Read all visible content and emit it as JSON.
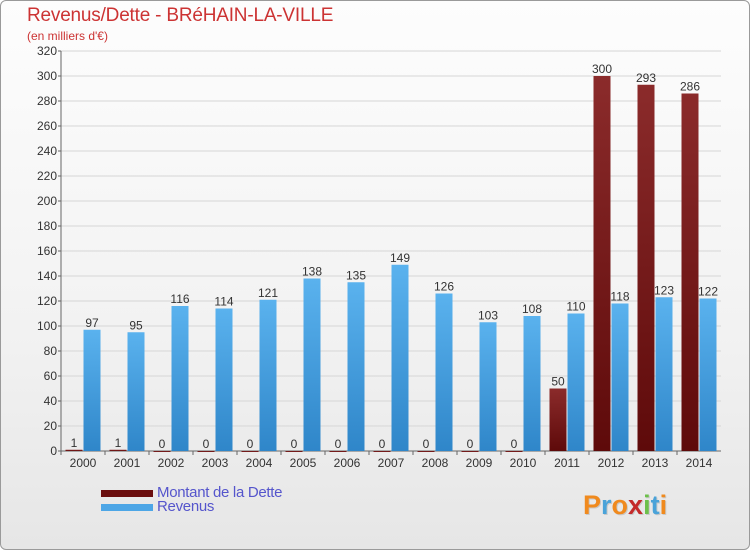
{
  "title": "Revenus/Dette - BRéHAIN-LA-VILLE",
  "subtitle": "(en milliers d'€)",
  "chart_data": {
    "type": "bar",
    "categories": [
      "2000",
      "2001",
      "2002",
      "2003",
      "2004",
      "2005",
      "2006",
      "2007",
      "2008",
      "2009",
      "2010",
      "2011",
      "2012",
      "2013",
      "2014"
    ],
    "series": [
      {
        "name": "Montant de la Dette",
        "values": [
          1,
          1,
          0,
          0,
          0,
          0,
          0,
          0,
          0,
          0,
          0,
          50,
          300,
          293,
          286
        ],
        "color": "#7a1a1a"
      },
      {
        "name": "Revenus",
        "values": [
          97,
          95,
          116,
          114,
          121,
          138,
          135,
          149,
          126,
          103,
          108,
          110,
          118,
          123,
          122
        ],
        "color": "#4da6e6"
      }
    ],
    "ylim": [
      0,
      320
    ],
    "yticks": [
      0,
      20,
      40,
      60,
      80,
      100,
      120,
      140,
      160,
      180,
      200,
      220,
      240,
      260,
      280,
      300,
      320
    ],
    "grid": true,
    "legend": "bottom-left"
  },
  "legend": {
    "items": [
      {
        "label": "Montant de la Dette",
        "color": "#6b0e0e"
      },
      {
        "label": "Revenus",
        "color": "#4da6e6"
      }
    ]
  },
  "logo": {
    "text": "Proxiti",
    "colors": [
      "#f08a1e",
      "#4aa3d9",
      "#f08a1e",
      "#c42a2a",
      "#6cc04a",
      "#4aa3d9",
      "#f08a1e"
    ]
  }
}
